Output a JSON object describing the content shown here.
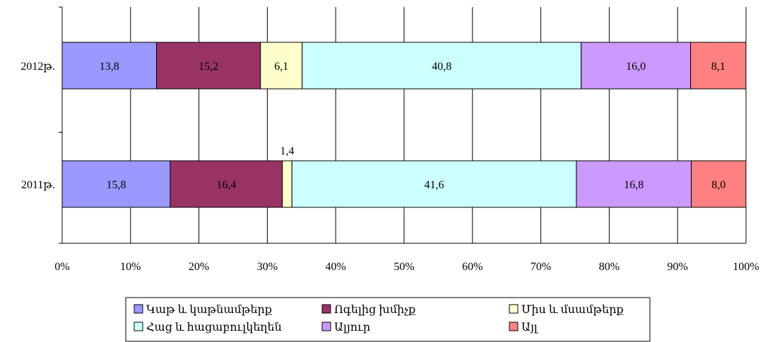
{
  "chart_data": {
    "type": "bar",
    "orientation": "horizontal",
    "stacked": "percent",
    "categories": [
      "2012թ.",
      "2011թ."
    ],
    "series": [
      {
        "name": "Կաթ և կաթնամթերք",
        "values": [
          13.8,
          15.8
        ],
        "labels": [
          "13,8",
          "15,8"
        ],
        "color": "#9999ff"
      },
      {
        "name": "Ոգելից խմիչք",
        "values": [
          15.2,
          16.4
        ],
        "labels": [
          "15,2",
          "16,4"
        ],
        "color": "#993366"
      },
      {
        "name": "Միս և մսամթերք",
        "values": [
          6.1,
          1.4
        ],
        "labels": [
          "6,1",
          "1,4"
        ],
        "color": "#ffffcc"
      },
      {
        "name": "Հաց և հացաբուլկեղեն",
        "values": [
          40.8,
          41.6
        ],
        "labels": [
          "40,8",
          "41,6"
        ],
        "color": "#ccffff"
      },
      {
        "name": "Ալյուր",
        "values": [
          16.0,
          16.8
        ],
        "labels": [
          "16,0",
          "16,8"
        ],
        "color": "#cc99ff"
      },
      {
        "name": "Այլ",
        "values": [
          8.1,
          8.0
        ],
        "labels": [
          "8,1",
          "8,0"
        ],
        "color": "#ff8080"
      }
    ],
    "xticks": [
      "0%",
      "10%",
      "20%",
      "30%",
      "40%",
      "50%",
      "60%",
      "70%",
      "80%",
      "90%",
      "100%"
    ],
    "xlim": [
      0,
      100
    ],
    "grid": true,
    "legend_position": "bottom",
    "title": "",
    "xlabel": "",
    "ylabel": ""
  }
}
